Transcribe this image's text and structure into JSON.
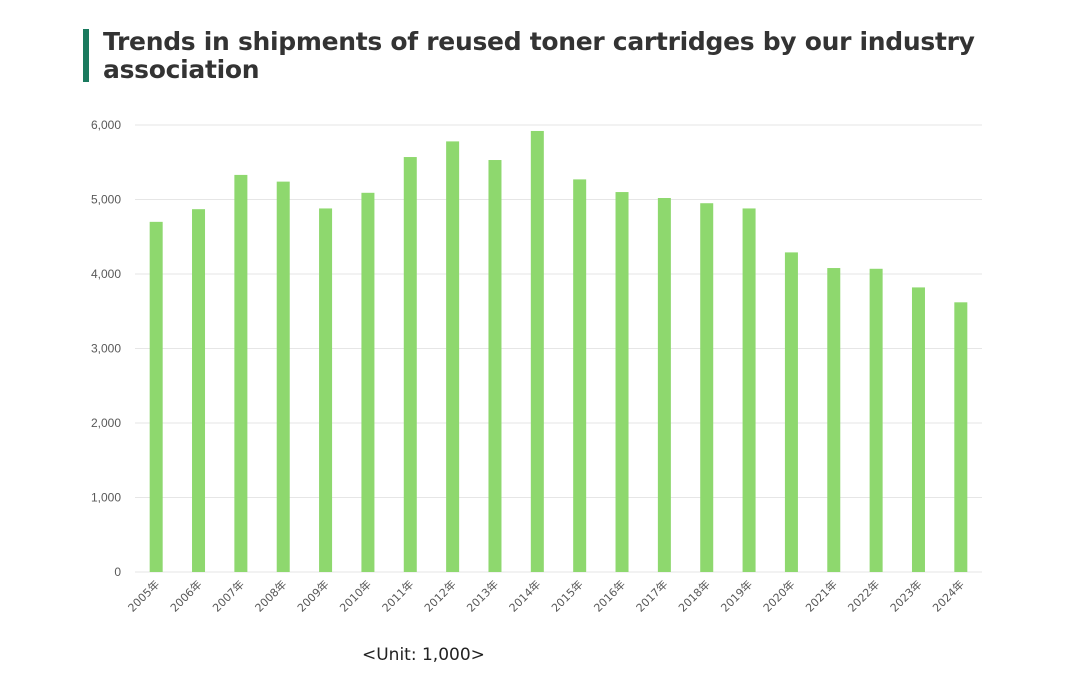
{
  "chart_data": {
    "type": "bar",
    "title": "Trends in shipments of reused toner cartridges by our industry association",
    "xlabel": "",
    "ylabel": "",
    "unit_note": "<Unit: 1,000>",
    "categories": [
      "2005年",
      "2006年",
      "2007年",
      "2008年",
      "2009年",
      "2010年",
      "2011年",
      "2012年",
      "2013年",
      "2014年",
      "2015年",
      "2016年",
      "2017年",
      "2018年",
      "2019年",
      "2020年",
      "2021年",
      "2022年",
      "2023年",
      "2024年"
    ],
    "values": [
      4700,
      4870,
      5330,
      5240,
      4880,
      5090,
      5570,
      5780,
      5530,
      5920,
      5270,
      5100,
      5020,
      4950,
      4880,
      4290,
      4080,
      4070,
      3820,
      3620
    ],
    "y_ticks": [
      0,
      1000,
      2000,
      3000,
      4000,
      5000,
      6000
    ],
    "y_tick_labels": [
      "0",
      "1,000",
      "2,000",
      "3,000",
      "4,000",
      "5,000",
      "6,000"
    ],
    "ylim": [
      0,
      6000
    ],
    "grid": true,
    "legend": "none",
    "bar_color": "#8ed86e",
    "grid_color": "#e6e6e6",
    "title_accent_color": "#1a7a5e"
  }
}
